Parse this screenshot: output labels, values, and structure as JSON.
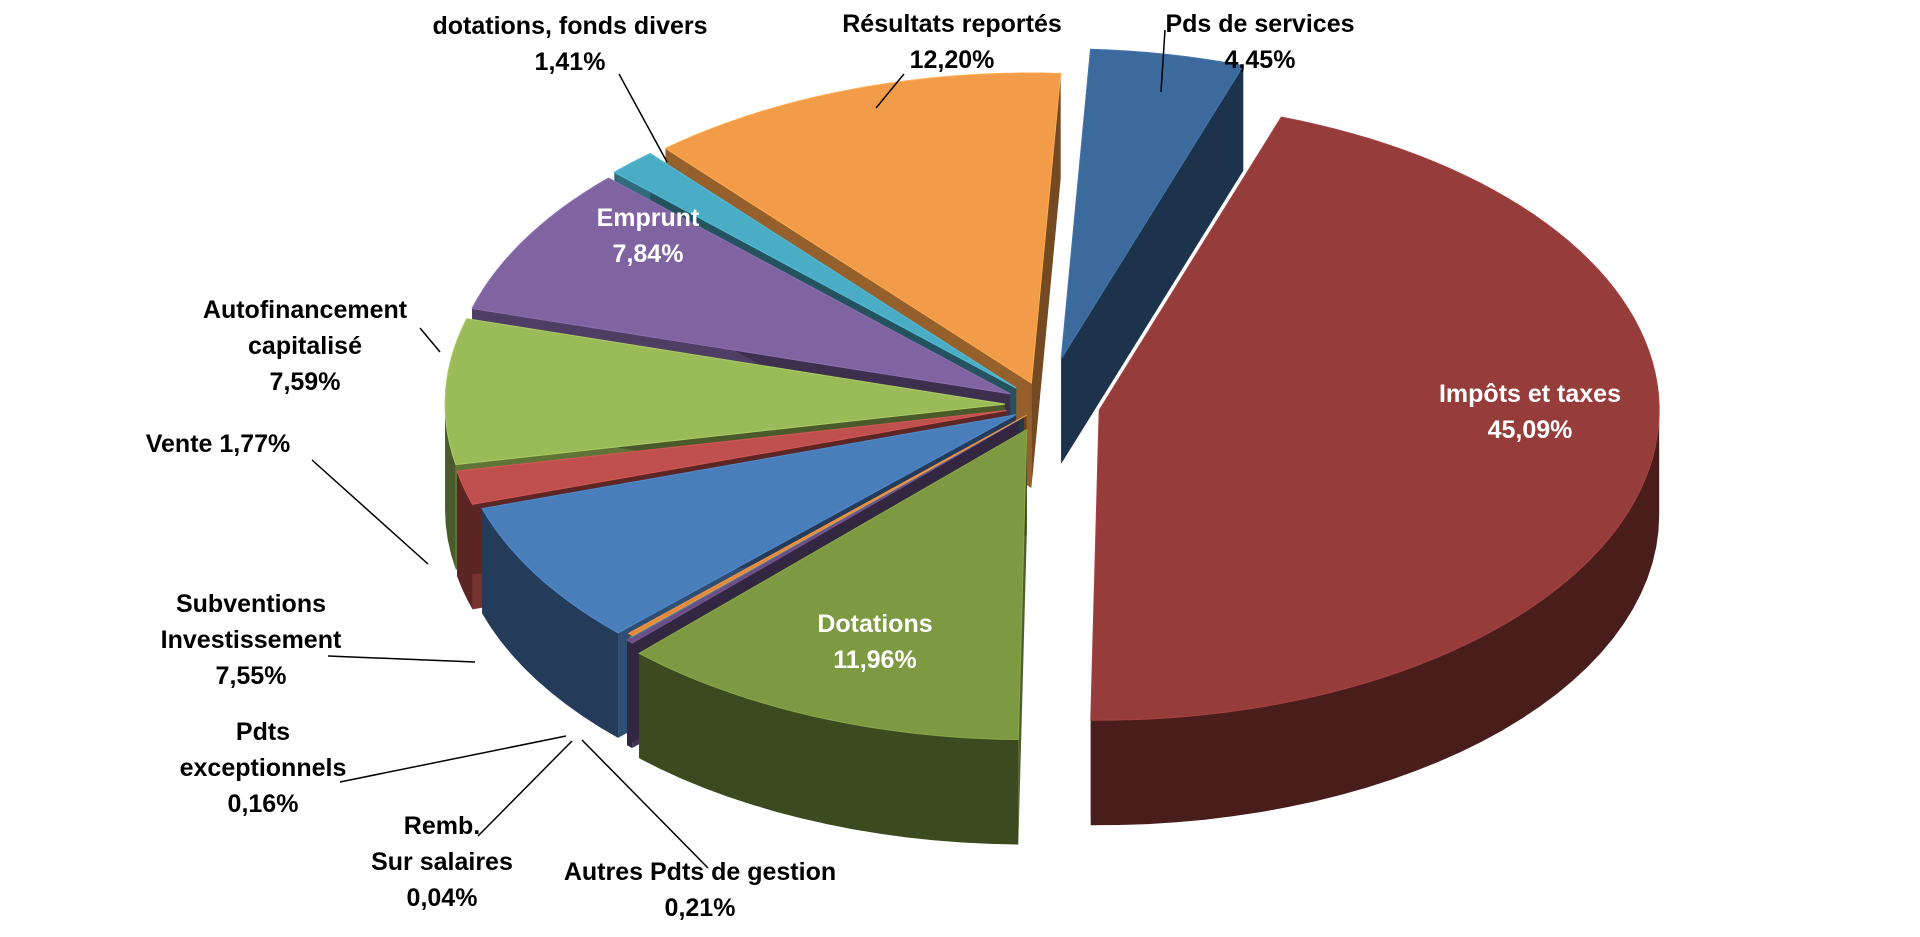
{
  "chart_data": {
    "type": "pie",
    "style": "3d-exploded",
    "title": "",
    "unit": "%",
    "slices": [
      {
        "name": "Pds de services",
        "label_lines": [
          "Pds de services",
          "4,45%"
        ],
        "value": 4.45,
        "color": "#3d6a9c"
      },
      {
        "name": "Impôts et taxes",
        "label_lines": [
          "Impôts et taxes",
          "45,09%"
        ],
        "value": 45.09,
        "color": "#963c3a"
      },
      {
        "name": "Dotations",
        "label_lines": [
          "Dotations",
          "11,96%"
        ],
        "value": 11.96,
        "color": "#7d9a42"
      },
      {
        "name": "Autres Pdts de gestion",
        "label_lines": [
          "Autres Pdts de gestion",
          "0,21%"
        ],
        "value": 0.21,
        "color": "#6a4f86"
      },
      {
        "name": "Remb. Sur salaires",
        "label_lines": [
          "Remb.",
          "Sur salaires",
          "0,04%"
        ],
        "value": 0.04,
        "color": "#3f7f8f"
      },
      {
        "name": "Pdts exceptionnels",
        "label_lines": [
          "Pdts",
          "exceptionnels",
          "0,16%"
        ],
        "value": 0.16,
        "color": "#e0883c"
      },
      {
        "name": "Subventions Investissement",
        "label_lines": [
          "Subventions",
          "Investissement",
          "7,55%"
        ],
        "value": 7.55,
        "color": "#4a7ebb"
      },
      {
        "name": "Vente",
        "label_lines": [
          "Vente 1,77%"
        ],
        "value": 1.77,
        "color": "#c0504d"
      },
      {
        "name": "Autofinancement capitalisé",
        "label_lines": [
          "Autofinancement",
          "capitalisé",
          "7,59%"
        ],
        "value": 7.59,
        "color": "#9bbb59"
      },
      {
        "name": "Emprunt",
        "label_lines": [
          "Emprunt",
          "7,84%"
        ],
        "value": 7.84,
        "color": "#8064a2"
      },
      {
        "name": "dotations, fonds divers",
        "label_lines": [
          "dotations, fonds divers",
          "1,41%"
        ],
        "value": 1.41,
        "color": "#4bacc6"
      },
      {
        "name": "Résultats reportés",
        "label_lines": [
          "Résultats reportés",
          "12,20%"
        ],
        "value": 12.2,
        "color": "#f29b48"
      }
    ],
    "label_colors": {
      "inside": "#ffffff",
      "outside": "#000000"
    },
    "legend": "none"
  }
}
